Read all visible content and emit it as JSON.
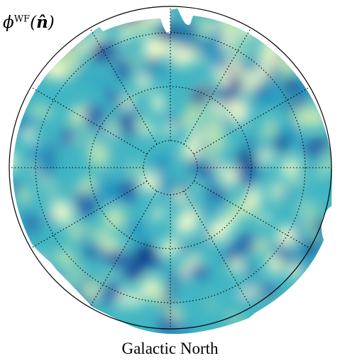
{
  "figure": {
    "title_symbol": "ϕ",
    "title_superscript": "WF",
    "title_open": "(",
    "title_argument": "n̂",
    "title_close": ")",
    "caption": "Galactic North"
  },
  "colors": {
    "colormap": [
      "#ffffcc",
      "#c7e9b4",
      "#7fcdbb",
      "#41b6c4",
      "#1d91c0",
      "#225ea8",
      "#0c2c84"
    ],
    "graticule": "#000000",
    "outline": "#000000"
  }
}
